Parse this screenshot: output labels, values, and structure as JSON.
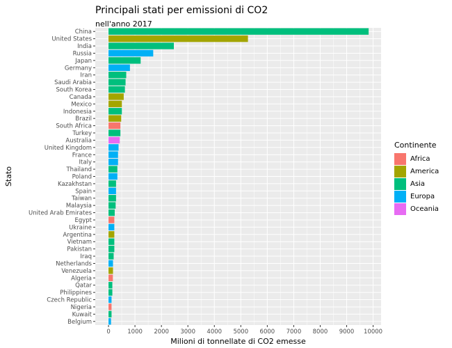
{
  "chart_data": {
    "type": "bar",
    "orientation": "horizontal",
    "title": "Principali stati per emissioni di CO2",
    "subtitle": "nell'anno 2017",
    "xlabel": "Milioni di tonnellate di CO2 emesse",
    "ylabel": "Stato",
    "xlim": [
      -500,
      10300
    ],
    "xticks": [
      0,
      1000,
      2000,
      3000,
      4000,
      5000,
      6000,
      7000,
      8000,
      9000,
      10000
    ],
    "grid": true,
    "legend": {
      "title": "Continente",
      "position": "right",
      "entries": [
        {
          "name": "Africa",
          "color": "#F8766D"
        },
        {
          "name": "America",
          "color": "#A3A500"
        },
        {
          "name": "Asia",
          "color": "#00BF7D"
        },
        {
          "name": "Europa",
          "color": "#00B0F6"
        },
        {
          "name": "Oceania",
          "color": "#E76BF3"
        }
      ]
    },
    "categories": [
      "China",
      "United States",
      "India",
      "Russia",
      "Japan",
      "Germany",
      "Iran",
      "Saudi Arabia",
      "South Korea",
      "Canada",
      "Mexico",
      "Indonesia",
      "Brazil",
      "South Africa",
      "Turkey",
      "Australia",
      "United Kingdom",
      "France",
      "Italy",
      "Thailand",
      "Poland",
      "Kazakhstan",
      "Spain",
      "Taiwan",
      "Malaysia",
      "United Arab Emirates",
      "Egypt",
      "Ukraine",
      "Argentina",
      "Vietnam",
      "Pakistan",
      "Iraq",
      "Netherlands",
      "Venezuela",
      "Algeria",
      "Qatar",
      "Philippines",
      "Czech Republic",
      "Nigeria",
      "Kuwait",
      "Belgium"
    ],
    "values": [
      9830,
      5270,
      2470,
      1690,
      1215,
      810,
      670,
      645,
      620,
      575,
      505,
      505,
      480,
      450,
      450,
      425,
      380,
      360,
      360,
      335,
      335,
      285,
      285,
      285,
      270,
      235,
      220,
      220,
      220,
      220,
      220,
      195,
      170,
      170,
      165,
      145,
      145,
      115,
      115,
      115,
      95
    ],
    "continents": [
      "Asia",
      "America",
      "Asia",
      "Europa",
      "Asia",
      "Europa",
      "Asia",
      "Asia",
      "Asia",
      "America",
      "America",
      "Asia",
      "America",
      "Africa",
      "Asia",
      "Oceania",
      "Europa",
      "Europa",
      "Europa",
      "Asia",
      "Europa",
      "Asia",
      "Europa",
      "Asia",
      "Asia",
      "Asia",
      "Africa",
      "Europa",
      "America",
      "Asia",
      "Asia",
      "Asia",
      "Europa",
      "America",
      "Africa",
      "Asia",
      "Asia",
      "Europa",
      "Africa",
      "Asia",
      "Europa"
    ]
  }
}
